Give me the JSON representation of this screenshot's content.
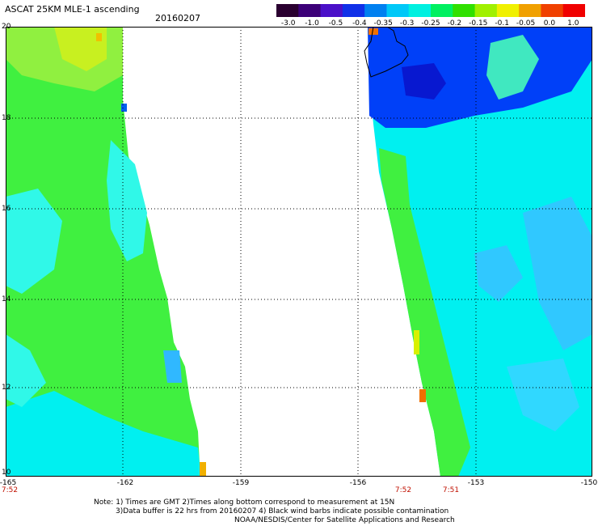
{
  "header": {
    "title": "ASCAT 25KM MLE-1 ascending",
    "date": "20160207"
  },
  "colorbar": {
    "labels": [
      "-3.0",
      "-1.0",
      "-0.5",
      "-0.4",
      "-0.35",
      "-0.3",
      "-0.25",
      "-0.2",
      "-0.15",
      "-0.1",
      "-0.05",
      "0.0",
      "1.0"
    ],
    "colors": [
      "#2a0030",
      "#3c0078",
      "#4a10c8",
      "#1030e8",
      "#0080f0",
      "#00c8f8",
      "#00f0e0",
      "#00f060",
      "#30e000",
      "#a0f000",
      "#f0f000",
      "#f0a000",
      "#f04000",
      "#f00000"
    ]
  },
  "map": {
    "lat_labels": [
      "20",
      "18",
      "16",
      "14",
      "12",
      "10"
    ],
    "lon_labels": [
      "-165",
      "-162",
      "-159",
      "-156",
      "-153",
      "-150"
    ],
    "time_labels": [
      "7:52",
      "7:52",
      "7:51"
    ],
    "colors": {
      "green": "#40f040",
      "light_green": "#60f060",
      "cyan": "#00f0f0",
      "light_cyan": "#30f8e8",
      "yellow": "#d8f000",
      "blue": "#0040f8",
      "dark_blue": "#0818d0",
      "sky": "#30b8ff",
      "orange": "#f07000",
      "coast": "#000000",
      "grid": "#000000"
    }
  },
  "notes": {
    "line1": "Note: 1) Times are GMT 2)Times along bottom correspond to measurement at 15N",
    "line2": "3)Data buffer is 22 hrs from 20160207 4) Black wind barbs indicate possible contamination",
    "line3": "NOAA/NESDIS/Center for Satellite Applications and Research"
  }
}
